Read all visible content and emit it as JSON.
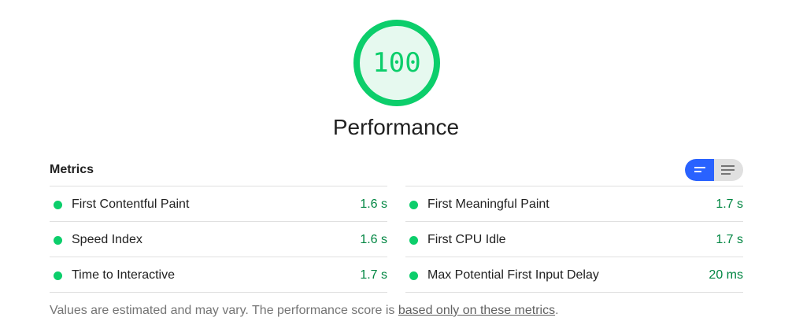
{
  "gauge": {
    "score": "100",
    "fraction": 1.0,
    "color": "#0cce6b",
    "fill_color": "#e6f9ef"
  },
  "category": {
    "title": "Performance"
  },
  "metrics": {
    "header": "Metrics",
    "toggle": {
      "left_icon": "opportunity-view-icon",
      "right_icon": "list-view-icon",
      "active_color": "#2962ff"
    },
    "left": [
      {
        "name": "First Contentful Paint",
        "value": "1.6 s"
      },
      {
        "name": "Speed Index",
        "value": "1.6 s"
      },
      {
        "name": "Time to Interactive",
        "value": "1.7 s"
      }
    ],
    "right": [
      {
        "name": "First Meaningful Paint",
        "value": "1.7 s"
      },
      {
        "name": "First CPU Idle",
        "value": "1.7 s"
      },
      {
        "name": "Max Potential First Input Delay",
        "value": "20 ms"
      }
    ],
    "pass_color": "#0cce6b",
    "value_color": "#018642"
  },
  "footer": {
    "text_before": "Values are estimated and may vary. The performance score is ",
    "link_text": "based only on these metrics",
    "text_after": "."
  }
}
